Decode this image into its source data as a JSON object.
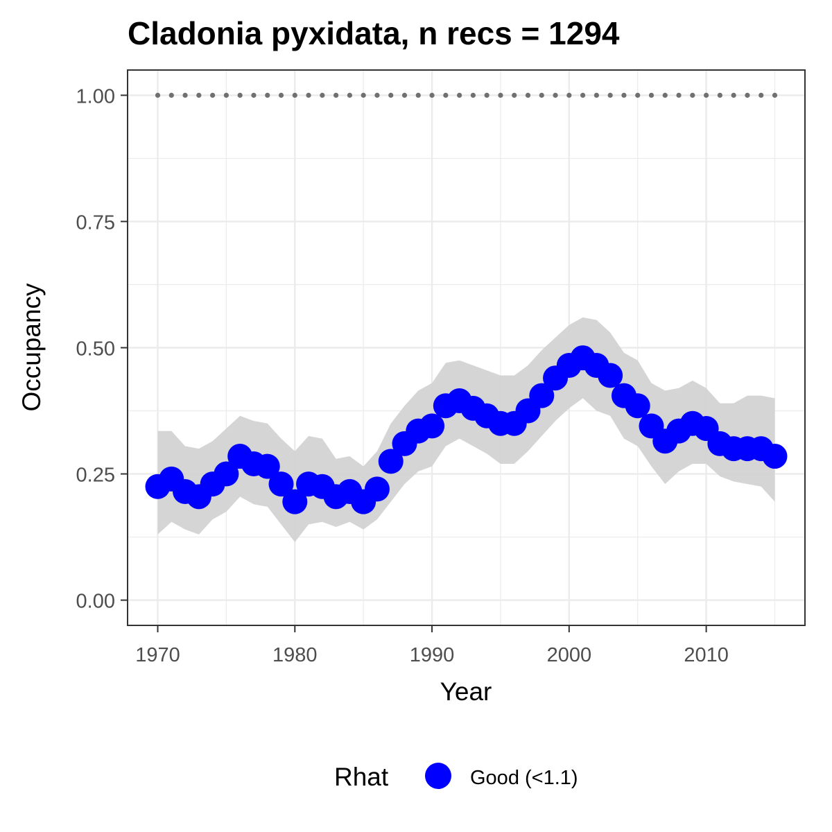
{
  "chart_data": {
    "type": "line",
    "title": "Cladonia pyxidata, n recs = 1294",
    "xlabel": "Year",
    "ylabel": "Occupancy",
    "xlim": [
      1967.8,
      2017.2
    ],
    "ylim": [
      -0.05,
      1.05
    ],
    "x_ticks": [
      1970,
      1980,
      1990,
      2000,
      2010
    ],
    "x_tick_labels": [
      "1970",
      "1980",
      "1990",
      "2000",
      "2010"
    ],
    "y_ticks": [
      0,
      0.25,
      0.5,
      0.75,
      1
    ],
    "y_tick_labels": [
      "0.00",
      "0.25",
      "0.50",
      "0.75",
      "1.00"
    ],
    "grid": true,
    "legend": {
      "title": "Rhat",
      "position": "bottom",
      "entries": [
        "Good (<1.1)"
      ]
    },
    "colors": {
      "points": "#0000ff",
      "ribbon": "#d3d3d3",
      "reference": "#707070"
    },
    "x": [
      1970,
      1971,
      1972,
      1973,
      1974,
      1975,
      1976,
      1977,
      1978,
      1979,
      1980,
      1981,
      1982,
      1983,
      1984,
      1985,
      1986,
      1987,
      1988,
      1989,
      1990,
      1991,
      1992,
      1993,
      1994,
      1995,
      1996,
      1997,
      1998,
      1999,
      2000,
      2001,
      2002,
      2003,
      2004,
      2005,
      2006,
      2007,
      2008,
      2009,
      2010,
      2011,
      2012,
      2013,
      2014,
      2015
    ],
    "series": [
      {
        "values": [
          0.225,
          0.24,
          0.215,
          0.205,
          0.23,
          0.25,
          0.285,
          0.27,
          0.265,
          0.23,
          0.195,
          0.23,
          0.225,
          0.205,
          0.215,
          0.195,
          0.22,
          0.275,
          0.31,
          0.335,
          0.345,
          0.385,
          0.395,
          0.38,
          0.365,
          0.35,
          0.35,
          0.375,
          0.405,
          0.44,
          0.465,
          0.48,
          0.465,
          0.445,
          0.405,
          0.385,
          0.345,
          0.315,
          0.335,
          0.35,
          0.34,
          0.31,
          0.3,
          0.3,
          0.3,
          0.285
        ],
        "lower": [
          0.13,
          0.155,
          0.14,
          0.13,
          0.16,
          0.175,
          0.205,
          0.19,
          0.185,
          0.15,
          0.115,
          0.15,
          0.155,
          0.145,
          0.155,
          0.14,
          0.16,
          0.195,
          0.23,
          0.255,
          0.265,
          0.305,
          0.32,
          0.305,
          0.29,
          0.27,
          0.27,
          0.295,
          0.325,
          0.355,
          0.38,
          0.4,
          0.375,
          0.365,
          0.32,
          0.305,
          0.265,
          0.23,
          0.255,
          0.27,
          0.27,
          0.245,
          0.235,
          0.23,
          0.225,
          0.195
        ],
        "upper": [
          0.335,
          0.335,
          0.305,
          0.3,
          0.315,
          0.34,
          0.365,
          0.355,
          0.35,
          0.32,
          0.295,
          0.325,
          0.32,
          0.28,
          0.285,
          0.265,
          0.295,
          0.35,
          0.385,
          0.415,
          0.43,
          0.47,
          0.475,
          0.465,
          0.455,
          0.445,
          0.445,
          0.465,
          0.495,
          0.52,
          0.545,
          0.56,
          0.555,
          0.53,
          0.49,
          0.475,
          0.43,
          0.415,
          0.42,
          0.435,
          0.42,
          0.39,
          0.39,
          0.405,
          0.405,
          0.4
        ]
      }
    ],
    "reference_line": {
      "y": 1.0
    }
  }
}
